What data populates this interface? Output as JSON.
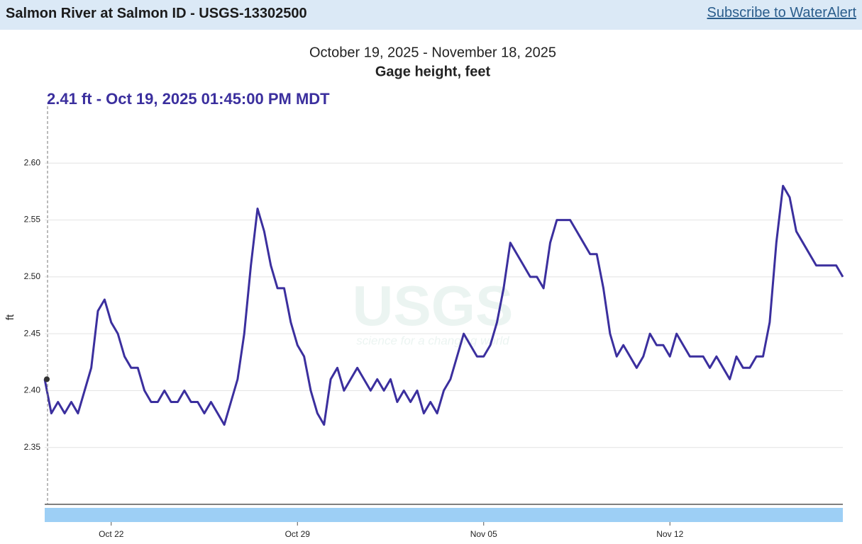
{
  "header": {
    "title": "Salmon River at Salmon ID - USGS-13302500",
    "link": "Subscribe to WaterAlert"
  },
  "chart_data": {
    "type": "line",
    "title": "October 19, 2025 - November 18, 2025",
    "subtitle": "Gage height, feet",
    "cursor_label": "2.41 ft - Oct 19, 2025 01:45:00 PM MDT",
    "y_label": "ft",
    "watermark": {
      "logo": "USGS",
      "tagline": "science for a changing world"
    },
    "categories": [
      null,
      null,
      null,
      null,
      null,
      null,
      null,
      null,
      null,
      null,
      "Oct 22",
      null,
      null,
      null,
      null,
      null,
      null,
      null,
      null,
      null,
      null,
      null,
      null,
      null,
      null,
      null,
      null,
      null,
      null,
      null,
      null,
      null,
      null,
      null,
      null,
      null,
      null,
      null,
      "Oct 29",
      null,
      null,
      null,
      null,
      null,
      null,
      null,
      null,
      null,
      null,
      null,
      null,
      null,
      null,
      null,
      null,
      null,
      null,
      null,
      null,
      null,
      null,
      null,
      null,
      null,
      null,
      null,
      "Nov 05",
      null,
      null,
      null,
      null,
      null,
      null,
      null,
      null,
      null,
      null,
      null,
      null,
      null,
      null,
      null,
      null,
      null,
      null,
      null,
      null,
      null,
      null,
      null,
      null,
      null,
      null,
      null,
      "Nov 12",
      null,
      null,
      null,
      null,
      null,
      null,
      null,
      null,
      null,
      null,
      null,
      null,
      null,
      null,
      null,
      null,
      null,
      null,
      null,
      null,
      null,
      null,
      null,
      null,
      null,
      null
    ],
    "series": [
      {
        "name": "Gage height",
        "color": "#3b2f9e",
        "values": [
          2.41,
          2.38,
          2.39,
          2.38,
          2.39,
          2.38,
          2.4,
          2.42,
          2.47,
          2.48,
          2.46,
          2.45,
          2.43,
          2.42,
          2.42,
          2.4,
          2.39,
          2.39,
          2.4,
          2.39,
          2.39,
          2.4,
          2.39,
          2.39,
          2.38,
          2.39,
          2.38,
          2.37,
          2.39,
          2.41,
          2.45,
          2.51,
          2.56,
          2.54,
          2.51,
          2.49,
          2.49,
          2.46,
          2.44,
          2.43,
          2.4,
          2.38,
          2.37,
          2.41,
          2.42,
          2.4,
          2.41,
          2.42,
          2.41,
          2.4,
          2.41,
          2.4,
          2.41,
          2.39,
          2.4,
          2.39,
          2.4,
          2.38,
          2.39,
          2.38,
          2.4,
          2.41,
          2.43,
          2.45,
          2.44,
          2.43,
          2.43,
          2.44,
          2.46,
          2.49,
          2.53,
          2.52,
          2.51,
          2.5,
          2.5,
          2.49,
          2.53,
          2.55,
          2.55,
          2.55,
          2.54,
          2.53,
          2.52,
          2.52,
          2.49,
          2.45,
          2.43,
          2.44,
          2.43,
          2.42,
          2.43,
          2.45,
          2.44,
          2.44,
          2.43,
          2.45,
          2.44,
          2.43,
          2.43,
          2.43,
          2.42,
          2.43,
          2.42,
          2.41,
          2.43,
          2.42,
          2.42,
          2.43,
          2.43,
          2.46,
          2.53,
          2.58,
          2.57,
          2.54,
          2.53,
          2.52,
          2.51,
          2.51,
          2.51,
          2.51,
          2.5
        ]
      }
    ],
    "ylim": [
      2.3,
      2.65
    ],
    "yticks": [
      2.35,
      {
        "value": 2.4,
        "label": "2.40"
      },
      2.45,
      {
        "value": 2.5,
        "label": "2.50"
      },
      2.55,
      {
        "value": 2.6,
        "label": "2.60"
      }
    ],
    "grid": true
  }
}
